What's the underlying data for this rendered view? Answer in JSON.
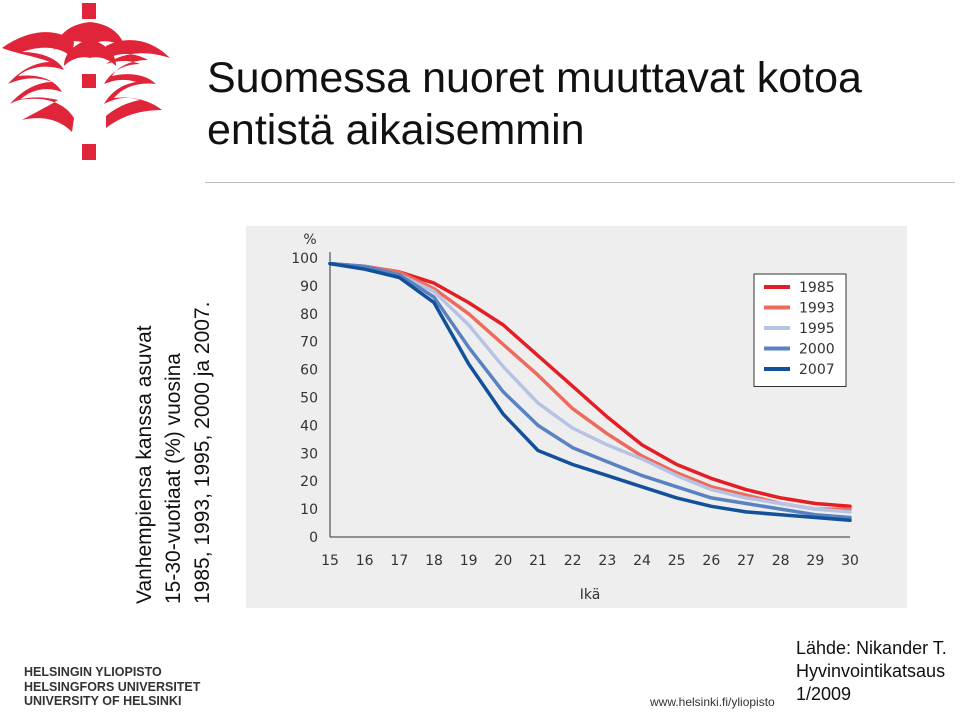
{
  "slide": {
    "title": "Suomessa nuoret muuttavat kotoa entistä aikaisemmin",
    "side_lines": [
      "Vanhempiensa kanssa asuvat",
      "15-30-vuotiaat (%) vuosina",
      "1985, 1993, 1995, 2000 ja 2007."
    ]
  },
  "footer": {
    "university_lines": [
      "HELSINGIN YLIOPISTO",
      "HELSINGFORS UNIVERSITET",
      "UNIVERSITY OF HELSINKI"
    ],
    "url": "www.helsinki.fi/yliopisto",
    "source_lines": [
      "Lähde: Nikander T.",
      "Hyvinvointikatsaus",
      "1/2009"
    ]
  },
  "colors": {
    "logo_red": "#e0253a",
    "background_chart": "#eeeeee"
  },
  "chart_data": {
    "type": "line",
    "title": "",
    "xlabel": "Ikä",
    "ylabel": "%",
    "x": [
      15,
      16,
      17,
      18,
      19,
      20,
      21,
      22,
      23,
      24,
      25,
      26,
      27,
      28,
      29,
      30
    ],
    "xlim": [
      15,
      30
    ],
    "ylim": [
      0,
      100
    ],
    "yticks": [
      0,
      10,
      20,
      30,
      40,
      50,
      60,
      70,
      80,
      90,
      100
    ],
    "grid": false,
    "legend_position": "top-right",
    "series": [
      {
        "name": "1985",
        "color": "#e31e24",
        "values": [
          98,
          97,
          95,
          91,
          84,
          76,
          65,
          54,
          43,
          33,
          26,
          21,
          17,
          14,
          12,
          11
        ]
      },
      {
        "name": "1993",
        "color": "#ee6a5c",
        "values": [
          98,
          97,
          95,
          89,
          80,
          69,
          58,
          46,
          37,
          29,
          23,
          18,
          15,
          12,
          10,
          10
        ]
      },
      {
        "name": "1995",
        "color": "#b7c3e4",
        "values": [
          98,
          97,
          94,
          88,
          76,
          61,
          48,
          39,
          33,
          28,
          22,
          17,
          14,
          12,
          10,
          9
        ]
      },
      {
        "name": "2000",
        "color": "#5a82c0",
        "values": [
          98,
          97,
          94,
          86,
          68,
          52,
          40,
          32,
          27,
          22,
          18,
          14,
          12,
          10,
          8,
          7
        ]
      },
      {
        "name": "2007",
        "color": "#12509a",
        "values": [
          98,
          96,
          93,
          84,
          62,
          44,
          31,
          26,
          22,
          18,
          14,
          11,
          9,
          8,
          7,
          6
        ]
      }
    ]
  }
}
